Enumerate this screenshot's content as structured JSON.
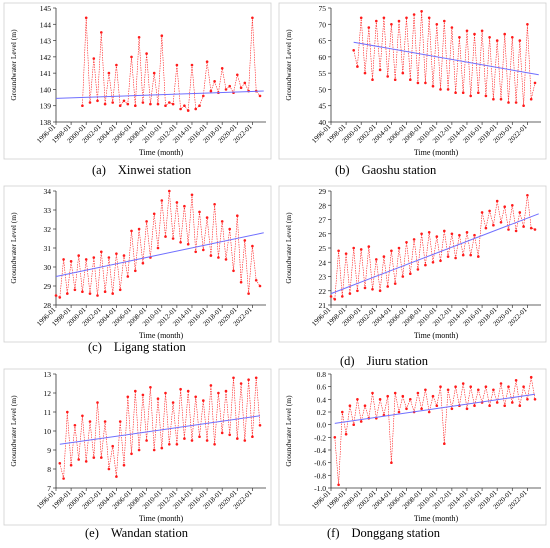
{
  "figure": {
    "common": {
      "xlabel": "Time (month)",
      "ylabel": "Groundwater Level (m)",
      "xticks": [
        "1996-01",
        "1998-01",
        "2000-01",
        "2002-01",
        "2004-01",
        "2006-01",
        "2008-01",
        "2010-01",
        "2012-01",
        "2014-01",
        "2016-01",
        "2018-01",
        "2020-01",
        "2022-01"
      ],
      "colors": {
        "data": "#ff1a1a",
        "trend": "#6f6fff",
        "axis": "#333333",
        "border": "#cfcfcf"
      }
    }
  },
  "chart_data": [
    {
      "id": "a",
      "type": "line",
      "caption_label": "(a)",
      "station": "Xinwei station",
      "xlim": [
        1996.0,
        2023.8
      ],
      "ylim": [
        138,
        145
      ],
      "yticks": [
        138,
        139,
        140,
        141,
        142,
        143,
        144,
        145
      ],
      "series": [
        {
          "x": [
            1999.5,
            2000.0,
            2000.5,
            2001.0,
            2001.5,
            2002.0,
            2002.5,
            2003.0,
            2003.5,
            2004.0,
            2004.5,
            2005.0,
            2005.5,
            2006.0,
            2006.5,
            2007.0,
            2007.5,
            2008.0,
            2008.5,
            2009.0,
            2009.5,
            2010.0,
            2010.5,
            2011.0,
            2011.5,
            2012.0,
            2012.5,
            2013.0,
            2013.5,
            2014.0,
            2014.5,
            2015.0,
            2015.5,
            2016.0,
            2016.5,
            2017.0,
            2017.5,
            2018.0,
            2018.5,
            2019.0,
            2019.5,
            2020.0,
            2020.5,
            2021.0,
            2021.5,
            2022.0,
            2022.5,
            2023.0
          ],
          "y": [
            139.0,
            144.4,
            139.2,
            141.9,
            139.3,
            143.5,
            139.1,
            141.0,
            139.2,
            141.5,
            139.0,
            139.3,
            139.1,
            142.0,
            139.0,
            143.2,
            139.2,
            142.2,
            139.1,
            141.0,
            139.1,
            143.3,
            139.0,
            139.2,
            139.1,
            141.5,
            138.8,
            139.0,
            138.7,
            141.5,
            138.8,
            139.0,
            139.6,
            141.7,
            139.9,
            140.5,
            139.8,
            141.3,
            140.0,
            140.2,
            139.8,
            140.9,
            140.1,
            140.4,
            139.9,
            144.4,
            139.9,
            139.6
          ]
        }
      ],
      "trend": {
        "x": [
          1996.0,
          2023.5
        ],
        "y": [
          139.45,
          139.9
        ]
      }
    },
    {
      "id": "b",
      "type": "line",
      "caption_label": "(b)",
      "station": "Gaoshu station",
      "xlim": [
        1996.0,
        2023.8
      ],
      "ylim": [
        40,
        75
      ],
      "yticks": [
        40,
        45,
        50,
        55,
        60,
        65,
        70,
        75
      ],
      "series": [
        {
          "x": [
            1999.0,
            1999.5,
            2000.0,
            2000.5,
            2001.0,
            2001.5,
            2002.0,
            2002.5,
            2003.0,
            2003.5,
            2004.0,
            2004.5,
            2005.0,
            2005.5,
            2006.0,
            2006.5,
            2007.0,
            2007.5,
            2008.0,
            2008.5,
            2009.0,
            2009.5,
            2010.0,
            2010.5,
            2011.0,
            2011.5,
            2012.0,
            2012.5,
            2013.0,
            2013.5,
            2014.0,
            2014.5,
            2015.0,
            2015.5,
            2016.0,
            2016.5,
            2017.0,
            2017.5,
            2018.0,
            2018.5,
            2019.0,
            2019.5,
            2020.0,
            2020.5,
            2021.0,
            2021.5,
            2022.0,
            2022.5,
            2023.0
          ],
          "y": [
            62,
            57,
            72,
            55,
            69,
            53,
            71,
            56,
            72,
            54,
            70,
            53,
            71,
            55,
            72,
            53,
            73,
            52,
            74,
            52,
            72,
            51,
            70,
            50,
            71,
            50,
            69,
            49,
            66,
            49,
            68,
            48,
            67,
            49,
            68,
            48,
            66,
            47,
            65,
            47,
            67,
            46,
            66,
            46,
            65,
            45,
            70,
            47,
            52
          ]
        }
      ],
      "trend": {
        "x": [
          1999.0,
          2023.5
        ],
        "y": [
          64.5,
          54.5
        ]
      }
    },
    {
      "id": "c",
      "type": "line",
      "caption_label": "(c)",
      "station": "Ligang station",
      "xlim": [
        1996.0,
        2023.8
      ],
      "ylim": [
        28,
        34
      ],
      "yticks": [
        28,
        29,
        30,
        31,
        32,
        33,
        34
      ],
      "series": [
        {
          "x": [
            1996.0,
            1996.5,
            1997.0,
            1997.5,
            1998.0,
            1998.5,
            1999.0,
            1999.5,
            2000.0,
            2000.5,
            2001.0,
            2001.5,
            2002.0,
            2002.5,
            2003.0,
            2003.5,
            2004.0,
            2004.5,
            2005.0,
            2005.5,
            2006.0,
            2006.5,
            2007.0,
            2007.5,
            2008.0,
            2008.5,
            2009.0,
            2009.5,
            2010.0,
            2010.5,
            2011.0,
            2011.5,
            2012.0,
            2012.5,
            2013.0,
            2013.5,
            2014.0,
            2014.5,
            2015.0,
            2015.5,
            2016.0,
            2016.5,
            2017.0,
            2017.5,
            2018.0,
            2018.5,
            2019.0,
            2019.5,
            2020.0,
            2020.5,
            2021.0,
            2021.5,
            2022.0,
            2022.5,
            2023.0
          ],
          "y": [
            28.5,
            28.4,
            30.4,
            28.6,
            30.3,
            28.8,
            30.6,
            28.7,
            30.4,
            28.6,
            30.5,
            28.5,
            30.8,
            28.7,
            30.5,
            28.6,
            30.7,
            28.8,
            30.6,
            29.5,
            31.9,
            29.8,
            32.0,
            30.2,
            32.4,
            30.5,
            32.8,
            31.0,
            33.5,
            31.6,
            34.0,
            31.5,
            33.4,
            31.3,
            33.2,
            31.2,
            33.8,
            30.8,
            32.9,
            30.9,
            32.6,
            30.6,
            33.3,
            30.5,
            32.4,
            30.4,
            32.0,
            29.8,
            32.7,
            29.2,
            31.4,
            28.6,
            31.1,
            29.3,
            29.0
          ]
        }
      ],
      "trend": {
        "x": [
          1996.0,
          2023.5
        ],
        "y": [
          29.5,
          31.8
        ]
      }
    },
    {
      "id": "d",
      "type": "line",
      "caption_label": "(d)",
      "station": "Jiuru station",
      "xlim": [
        1996.0,
        2023.8
      ],
      "ylim": [
        21,
        29
      ],
      "yticks": [
        21,
        22,
        23,
        24,
        25,
        26,
        27,
        28,
        29
      ],
      "series": [
        {
          "x": [
            1996.0,
            1996.5,
            1997.0,
            1997.5,
            1998.0,
            1998.5,
            1999.0,
            1999.5,
            2000.0,
            2000.5,
            2001.0,
            2001.5,
            2002.0,
            2002.5,
            2003.0,
            2003.5,
            2004.0,
            2004.5,
            2005.0,
            2005.5,
            2006.0,
            2006.5,
            2007.0,
            2007.5,
            2008.0,
            2008.5,
            2009.0,
            2009.5,
            2010.0,
            2010.5,
            2011.0,
            2011.5,
            2012.0,
            2012.5,
            2013.0,
            2013.5,
            2014.0,
            2014.5,
            2015.0,
            2015.5,
            2016.0,
            2016.5,
            2017.0,
            2017.5,
            2018.0,
            2018.5,
            2019.0,
            2019.5,
            2020.0,
            2020.5,
            2021.0,
            2021.5,
            2022.0,
            2022.5,
            2023.0
          ],
          "y": [
            21.6,
            21.4,
            24.8,
            21.6,
            24.6,
            21.8,
            25.0,
            22.0,
            24.9,
            22.2,
            25.1,
            22.1,
            24.2,
            22.0,
            24.4,
            22.3,
            24.8,
            22.5,
            25.0,
            23.0,
            25.4,
            23.2,
            25.6,
            23.5,
            26.0,
            23.8,
            26.1,
            24.0,
            25.8,
            24.1,
            26.2,
            24.4,
            26.0,
            24.3,
            25.9,
            24.5,
            26.1,
            24.5,
            25.9,
            24.4,
            27.5,
            26.4,
            27.6,
            26.6,
            28.3,
            26.8,
            27.9,
            26.3,
            28.0,
            26.2,
            27.5,
            26.5,
            28.7,
            26.4,
            26.3
          ]
        }
      ],
      "trend": {
        "x": [
          1996.0,
          2023.5
        ],
        "y": [
          21.8,
          27.4
        ]
      }
    },
    {
      "id": "e",
      "type": "line",
      "caption_label": "(e)",
      "station": "Wandan station",
      "xlim": [
        1996.0,
        2023.8
      ],
      "ylim": [
        7,
        13
      ],
      "yticks": [
        7,
        8,
        9,
        10,
        11,
        12,
        13
      ],
      "series": [
        {
          "x": [
            1996.5,
            1997.0,
            1997.5,
            1998.0,
            1998.5,
            1999.0,
            1999.5,
            2000.0,
            2000.5,
            2001.0,
            2001.5,
            2002.0,
            2002.5,
            2003.0,
            2003.5,
            2004.0,
            2004.5,
            2005.0,
            2005.5,
            2006.0,
            2006.5,
            2007.0,
            2007.5,
            2008.0,
            2008.5,
            2009.0,
            2009.5,
            2010.0,
            2010.5,
            2011.0,
            2011.5,
            2012.0,
            2012.5,
            2013.0,
            2013.5,
            2014.0,
            2014.5,
            2015.0,
            2015.5,
            2016.0,
            2016.5,
            2017.0,
            2017.5,
            2018.0,
            2018.5,
            2019.0,
            2019.5,
            2020.0,
            2020.5,
            2021.0,
            2021.5,
            2022.0,
            2022.5,
            2023.0
          ],
          "y": [
            8.3,
            7.5,
            11.0,
            8.2,
            10.3,
            8.5,
            10.8,
            8.4,
            10.5,
            8.6,
            11.5,
            8.6,
            10.5,
            8.0,
            9.2,
            7.6,
            10.5,
            8.2,
            11.8,
            8.8,
            12.1,
            9.0,
            11.9,
            9.5,
            12.3,
            9.0,
            11.7,
            9.1,
            12.0,
            9.3,
            11.5,
            9.3,
            12.2,
            9.6,
            12.1,
            9.5,
            11.8,
            9.7,
            11.6,
            9.5,
            12.4,
            9.3,
            12.0,
            9.9,
            12.1,
            9.8,
            12.8,
            9.6,
            12.5,
            9.5,
            12.7,
            9.7,
            12.8,
            10.3
          ]
        }
      ],
      "trend": {
        "x": [
          1996.5,
          2023.0
        ],
        "y": [
          9.3,
          10.8
        ]
      }
    },
    {
      "id": "f",
      "type": "line",
      "caption_label": "(f)",
      "station": "Donggang station",
      "xlim": [
        1996.0,
        2023.8
      ],
      "ylim": [
        -1.0,
        0.8
      ],
      "yticks": [
        -1.0,
        -0.8,
        -0.6,
        -0.4,
        -0.2,
        0.0,
        0.2,
        0.4,
        0.6,
        0.8
      ],
      "series": [
        {
          "x": [
            1996.5,
            1997.0,
            1997.5,
            1998.0,
            1998.5,
            1999.0,
            1999.5,
            2000.0,
            2000.5,
            2001.0,
            2001.5,
            2002.0,
            2002.5,
            2003.0,
            2003.5,
            2004.0,
            2004.5,
            2005.0,
            2005.5,
            2006.0,
            2006.5,
            2007.0,
            2007.5,
            2008.0,
            2008.5,
            2009.0,
            2009.5,
            2010.0,
            2010.5,
            2011.0,
            2011.5,
            2012.0,
            2012.5,
            2013.0,
            2013.5,
            2014.0,
            2014.5,
            2015.0,
            2015.5,
            2016.0,
            2016.5,
            2017.0,
            2017.5,
            2018.0,
            2018.5,
            2019.0,
            2019.5,
            2020.0,
            2020.5,
            2021.0,
            2021.5,
            2022.0,
            2022.5,
            2023.0
          ],
          "y": [
            -0.2,
            -0.95,
            0.2,
            -0.15,
            0.3,
            0.0,
            0.4,
            0.05,
            0.3,
            0.1,
            0.5,
            0.1,
            0.4,
            0.15,
            0.45,
            -0.6,
            0.5,
            0.2,
            0.45,
            0.25,
            0.4,
            0.2,
            0.5,
            0.25,
            0.55,
            0.2,
            0.45,
            0.3,
            0.6,
            -0.3,
            0.55,
            0.25,
            0.6,
            0.3,
            0.65,
            0.25,
            0.6,
            0.3,
            0.55,
            0.35,
            0.6,
            0.3,
            0.55,
            0.35,
            0.65,
            0.3,
            0.6,
            0.35,
            0.7,
            0.3,
            0.6,
            0.4,
            0.75,
            0.4
          ]
        }
      ],
      "trend": {
        "x": [
          1996.5,
          2023.0
        ],
        "y": [
          0.02,
          0.48
        ]
      }
    }
  ]
}
